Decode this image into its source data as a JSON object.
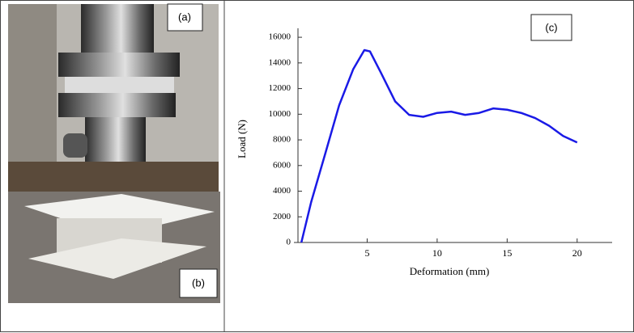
{
  "panel_labels": {
    "a": "(a)",
    "b": "(b)",
    "c": "(c)"
  },
  "chart_data": {
    "type": "line",
    "x_label": "Deformation (mm)",
    "y_label": "Load (N)",
    "x": [
      0.3,
      1,
      2,
      3,
      4,
      4.8,
      5.2,
      6,
      7,
      8,
      9,
      10,
      11,
      12,
      13,
      14,
      15,
      16,
      17,
      18,
      19,
      20
    ],
    "series": [
      {
        "color": "#1a1ae6",
        "values": [
          0,
          3150,
          6900,
          10700,
          13500,
          15000,
          14900,
          13200,
          11000,
          9950,
          9800,
          10100,
          10200,
          9950,
          10100,
          10450,
          10350,
          10100,
          9700,
          9100,
          8300,
          7800
        ]
      }
    ],
    "xlim": [
      0,
      22.5
    ],
    "xticks": [
      5,
      10,
      15,
      20
    ],
    "ylim": [
      0,
      16700
    ],
    "yticks": [
      0,
      2000,
      4000,
      6000,
      8000,
      10000,
      12000,
      14000,
      16000
    ]
  }
}
